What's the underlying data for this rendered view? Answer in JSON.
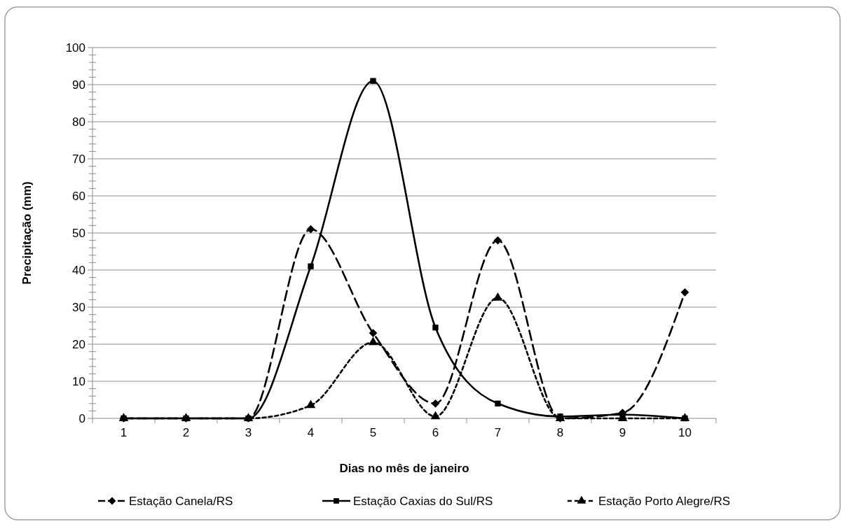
{
  "chart_data": {
    "type": "line",
    "xlabel": "Dias no mês de janeiro",
    "ylabel": "Precipitação (mm)",
    "categories": [
      "1",
      "2",
      "3",
      "4",
      "5",
      "6",
      "7",
      "8",
      "9",
      "10"
    ],
    "series": [
      {
        "name": "Estação Canela/RS",
        "color": "#000000",
        "marker": "diamond",
        "line_style": "dashed",
        "values": [
          0,
          0,
          0,
          51,
          23,
          4,
          48,
          0,
          1.5,
          34
        ]
      },
      {
        "name": "Estação Caxias do Sul/RS",
        "color": "#000000",
        "marker": "square",
        "line_style": "solid",
        "values": [
          0,
          0,
          0,
          41,
          91,
          24.5,
          4,
          0.5,
          1,
          0
        ]
      },
      {
        "name": "Estação Porto Alegre/RS",
        "color": "#000000",
        "marker": "triangle",
        "line_style": "dotted",
        "values": [
          0,
          0,
          0,
          3.5,
          20.5,
          0.5,
          32.5,
          0,
          0,
          0
        ]
      }
    ],
    "ylim": [
      0,
      100
    ],
    "yticks": [
      0,
      {
        "value": 2,
        "label": null
      },
      {
        "value": 4,
        "label": null
      },
      {
        "value": 6,
        "label": null
      },
      {
        "value": 8,
        "label": null
      },
      10,
      {
        "value": 12,
        "label": null
      },
      {
        "value": 14,
        "label": null
      },
      {
        "value": 16,
        "label": null
      },
      {
        "value": 18,
        "label": null
      },
      20,
      {
        "value": 22,
        "label": null
      },
      {
        "value": 24,
        "label": null
      },
      {
        "value": 26,
        "label": null
      },
      {
        "value": 28,
        "label": null
      },
      30,
      {
        "value": 32,
        "label": null
      },
      {
        "value": 34,
        "label": null
      },
      {
        "value": 36,
        "label": null
      },
      {
        "value": 38,
        "label": null
      },
      40,
      {
        "value": 42,
        "label": null
      },
      {
        "value": 44,
        "label": null
      },
      {
        "value": 46,
        "label": null
      },
      {
        "value": 48,
        "label": null
      },
      50,
      {
        "value": 52,
        "label": null
      },
      {
        "value": 54,
        "label": null
      },
      {
        "value": 56,
        "label": null
      },
      {
        "value": 58,
        "label": null
      },
      60,
      {
        "value": 62,
        "label": null
      },
      {
        "value": 64,
        "label": null
      },
      {
        "value": 66,
        "label": null
      },
      {
        "value": 68,
        "label": null
      },
      70,
      {
        "value": 72,
        "label": null
      },
      {
        "value": 74,
        "label": null
      },
      {
        "value": 76,
        "label": null
      },
      {
        "value": 78,
        "label": null
      },
      80,
      {
        "value": 82,
        "label": null
      },
      {
        "value": 84,
        "label": null
      },
      {
        "value": 86,
        "label": null
      },
      {
        "value": 88,
        "label": null
      },
      90,
      {
        "value": 92,
        "label": null
      },
      {
        "value": 94,
        "label": null
      },
      {
        "value": 96,
        "label": null
      },
      {
        "value": 98,
        "label": null
      },
      100
    ],
    "grid": "y",
    "legend": "bottom"
  }
}
